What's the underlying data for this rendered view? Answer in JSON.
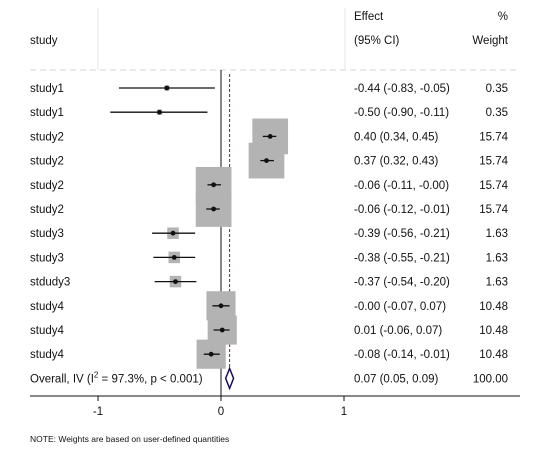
{
  "chart_data": {
    "type": "forest",
    "header": {
      "study": "study",
      "effect_line1": "Effect",
      "effect_line2": "(95% CI)",
      "weight_line1": "%",
      "weight_line2": "Weight"
    },
    "studies": [
      {
        "label": "study1",
        "effect": -0.44,
        "lo": -0.83,
        "hi": -0.05,
        "ci_text": "-0.44 (-0.83, -0.05)",
        "weight": 0.35,
        "weight_text": "0.35"
      },
      {
        "label": "study1",
        "effect": -0.5,
        "lo": -0.9,
        "hi": -0.11,
        "ci_text": "-0.50 (-0.90, -0.11)",
        "weight": 0.35,
        "weight_text": "0.35"
      },
      {
        "label": "study2",
        "effect": 0.4,
        "lo": 0.34,
        "hi": 0.45,
        "ci_text": "0.40 (0.34, 0.45)",
        "weight": 15.74,
        "weight_text": "15.74"
      },
      {
        "label": "study2",
        "effect": 0.37,
        "lo": 0.32,
        "hi": 0.43,
        "ci_text": "0.37 (0.32, 0.43)",
        "weight": 15.74,
        "weight_text": "15.74"
      },
      {
        "label": "study2",
        "effect": -0.06,
        "lo": -0.11,
        "hi": -0.0,
        "ci_text": "-0.06 (-0.11, -0.00)",
        "weight": 15.74,
        "weight_text": "15.74"
      },
      {
        "label": "study2",
        "effect": -0.06,
        "lo": -0.12,
        "hi": -0.01,
        "ci_text": "-0.06 (-0.12, -0.01)",
        "weight": 15.74,
        "weight_text": "15.74"
      },
      {
        "label": "study3",
        "effect": -0.39,
        "lo": -0.56,
        "hi": -0.21,
        "ci_text": "-0.39 (-0.56, -0.21)",
        "weight": 1.63,
        "weight_text": "1.63"
      },
      {
        "label": "study3",
        "effect": -0.38,
        "lo": -0.55,
        "hi": -0.21,
        "ci_text": "-0.38 (-0.55, -0.21)",
        "weight": 1.63,
        "weight_text": "1.63"
      },
      {
        "label": "stdudy3",
        "effect": -0.37,
        "lo": -0.54,
        "hi": -0.2,
        "ci_text": "-0.37 (-0.54, -0.20)",
        "weight": 1.63,
        "weight_text": "1.63"
      },
      {
        "label": "study4",
        "effect": -0.0,
        "lo": -0.07,
        "hi": 0.07,
        "ci_text": "-0.00 (-0.07, 0.07)",
        "weight": 10.48,
        "weight_text": "10.48"
      },
      {
        "label": "study4",
        "effect": 0.01,
        "lo": -0.06,
        "hi": 0.07,
        "ci_text": "0.01 (-0.06, 0.07)",
        "weight": 10.48,
        "weight_text": "10.48"
      },
      {
        "label": "study4",
        "effect": -0.08,
        "lo": -0.14,
        "hi": -0.01,
        "ci_text": "-0.08 (-0.14, -0.01)",
        "weight": 10.48,
        "weight_text": "10.48"
      }
    ],
    "overall": {
      "label_prefix": "Overall, IV (I",
      "label_sup": "2",
      "label_suffix": " = 97.3%, p < 0.001)",
      "effect": 0.07,
      "lo": 0.05,
      "hi": 0.09,
      "ci_text": "0.07 (0.05, 0.09)",
      "weight_text": "100.00"
    },
    "x_ticks": [
      -1,
      0,
      1
    ],
    "x_tick_labels": [
      "-1",
      "0",
      "1"
    ],
    "xlim": [
      -1.65,
      2.35
    ],
    "null_line": 0,
    "overall_line": 0.07,
    "note": "NOTE: Weights are based on user-defined quantities",
    "colors": {
      "box": "#b3b3b3",
      "diamond": "#1a0e5c",
      "overall_line": "#8b1c2c",
      "grid": "#d6d6d6",
      "ink": "#111111"
    }
  }
}
